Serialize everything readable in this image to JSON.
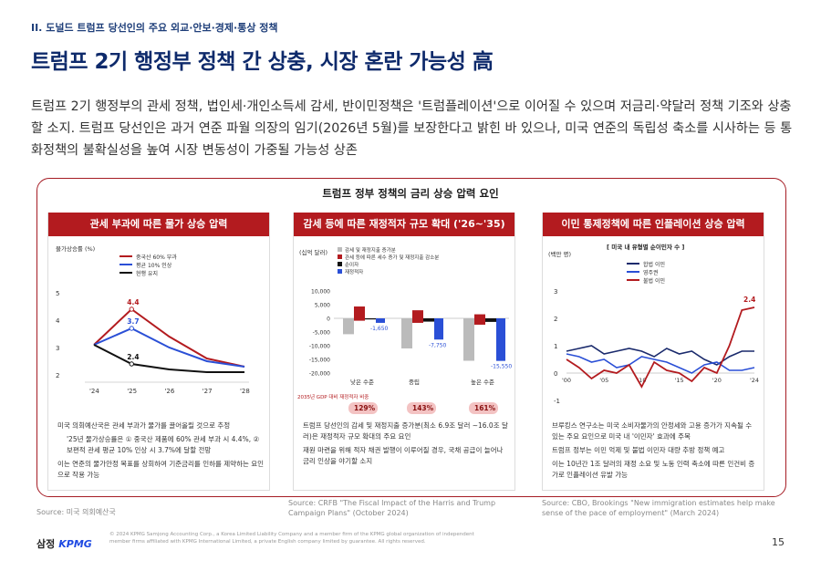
{
  "section": "II. 도널드 트럼프 당선인의 주요 외교·안보·경제·통상 정책",
  "title": "트럼프 2기 행정부 정책 간 상충, 시장 혼란 가능성 高",
  "body": "트럼프 2기 행정부의 관세 정책, 법인세·개인소득세 감세, 반이민정책은 '트럼플레이션'으로 이어질 수 있으며 저금리·약달러 정책 기조와 상충할 소지. 트럼프 당선인은 과거 연준 파월 의장의 임기(2026년 5월)를 보장한다고 밝힌 바 있으나, 미국 연준의 독립성 축소를 시사하는 등 통화정책의 불확실성을 높여 시장 변동성이 가중될 가능성 상존",
  "frame_title": "트럼프 정부 정책의 금리 상승 압력 요인",
  "colors": {
    "red": "#b31b1f",
    "navy": "#1a2a6c",
    "blue": "#2a4fd6",
    "black": "#111111"
  },
  "panels": [
    {
      "heading": "관세 부과에 따른 물가 상승 압력",
      "notes": [
        "미국 의회예산국은 관세 부과가 물가를 끌어올릴 것으로 추정",
        "'25년 물가상승률은 ① 중국산 제품에 60% 관세 부과 시 4.4%, ② 보편적 관세 평균 10% 인상 시 3.7%에 달할 전망",
        "이는 연준의 물가안정 목표를 상회하여 기준금리를 인하를 제약하는 요인으로 작용 가능"
      ],
      "source": "Source: 미국 의회예산국"
    },
    {
      "heading": "감세 등에 따른 재정적자 규모 확대 ('26~'35)",
      "notes": [
        "트럼프 당선인의 감세 및 재정지출 증가분(최소 6.9조 달러 ~16.0조 달러)은 재정적자 규모 확대의 주요 요인",
        "재원 마련을 위해 적자 채권 발행이 이루어질 경우, 국채 공급이 늘어나 금리 인상을 야기할 소지"
      ],
      "source": "Source: CRFB \"The Fiscal Impact of the Harris and Trump Campaign Plans\" (October 2024)"
    },
    {
      "heading": "이민 통제정책에 따른 인플레이션 상승 압력",
      "notes": [
        "브루킹스 연구소는 미국 소비자물가의 안정세와 고용 증가가 지속될 수 있는 주요 요인으로 미국 내 '이민자' 효과에 주목",
        "트럼프 정부는 이민 억제 및 불법 이민자 대량 추방 정책 예고",
        "이는 10년간 1조 달러의 재정 소요 및 노동 인력 축소에 따른 인건비 증가로 인플레이션 유발 가능"
      ],
      "source": "Source: CBO, Brookings \"New immigration estimates help make sense of the pace of employment\" (March 2024)"
    }
  ],
  "chart_data": [
    {
      "type": "line",
      "ylabel": "물가상승률 (%)",
      "ylim": [
        2,
        5
      ],
      "yticks": [
        2,
        3,
        4,
        5
      ],
      "categories": [
        "'24",
        "'25",
        "'26",
        "'27",
        "'28"
      ],
      "series": [
        {
          "name": "중국산 60% 부과",
          "color": "#b31b1f",
          "values": [
            3.1,
            4.4,
            3.4,
            2.6,
            2.3
          ]
        },
        {
          "name": "평균 10% 인상",
          "color": "#2a4fd6",
          "values": [
            3.1,
            3.7,
            3.0,
            2.5,
            2.3
          ]
        },
        {
          "name": "현행 유지",
          "color": "#111111",
          "values": [
            3.1,
            2.4,
            2.2,
            2.1,
            2.1
          ]
        }
      ],
      "labels": [
        "4.4",
        "3.7",
        "2.4"
      ]
    },
    {
      "type": "bar",
      "ylabel": "(십억 달러)",
      "ylim": [
        -20000,
        10000
      ],
      "yticks": [
        "10,000",
        "5,000",
        "0",
        "-5,000",
        "-10,000",
        "-15,000",
        "-20,000"
      ],
      "legend": [
        "감세 및 재정지출 증가분",
        "관세 등에 따른 세수 증가 및 재정지출 감소분",
        "순이자",
        "재정적자"
      ],
      "categories": [
        "낮은 수준",
        "중립",
        "높은 수준"
      ],
      "deficit_labels": [
        "-1,650",
        "-7,750",
        "-15,550"
      ],
      "gdp_label": "2035년 GDP 대비 재정적자 비중",
      "gdp_ratios": [
        "129%",
        "143%",
        "161%"
      ]
    },
    {
      "type": "line",
      "title": "[ 미국 내 유형별 순이민자 수 ]",
      "ylabel": "(백만 명)",
      "ylim": [
        -1,
        3
      ],
      "yticks": [
        3,
        2,
        1,
        0,
        -1
      ],
      "categories": [
        "'00",
        "'05",
        "'10",
        "'15",
        "'20",
        "'24"
      ],
      "series": [
        {
          "name": "합법 이민",
          "color": "#1a2a6c"
        },
        {
          "name": "영주권",
          "color": "#2a4fd6"
        },
        {
          "name": "불법 이민",
          "color": "#b31b1f"
        }
      ],
      "end_label": "2.4"
    }
  ],
  "footer": {
    "logo_kr": "삼정",
    "logo_en": "KPMG",
    "legal": "© 2024 KPMG Samjong Accounting Corp., a Korea Limited Liability Company and a member firm of the KPMG global organization of independent member firms affiliated with KPMG International Limited, a private English company limited by guarantee. All rights reserved.",
    "page": "15"
  }
}
